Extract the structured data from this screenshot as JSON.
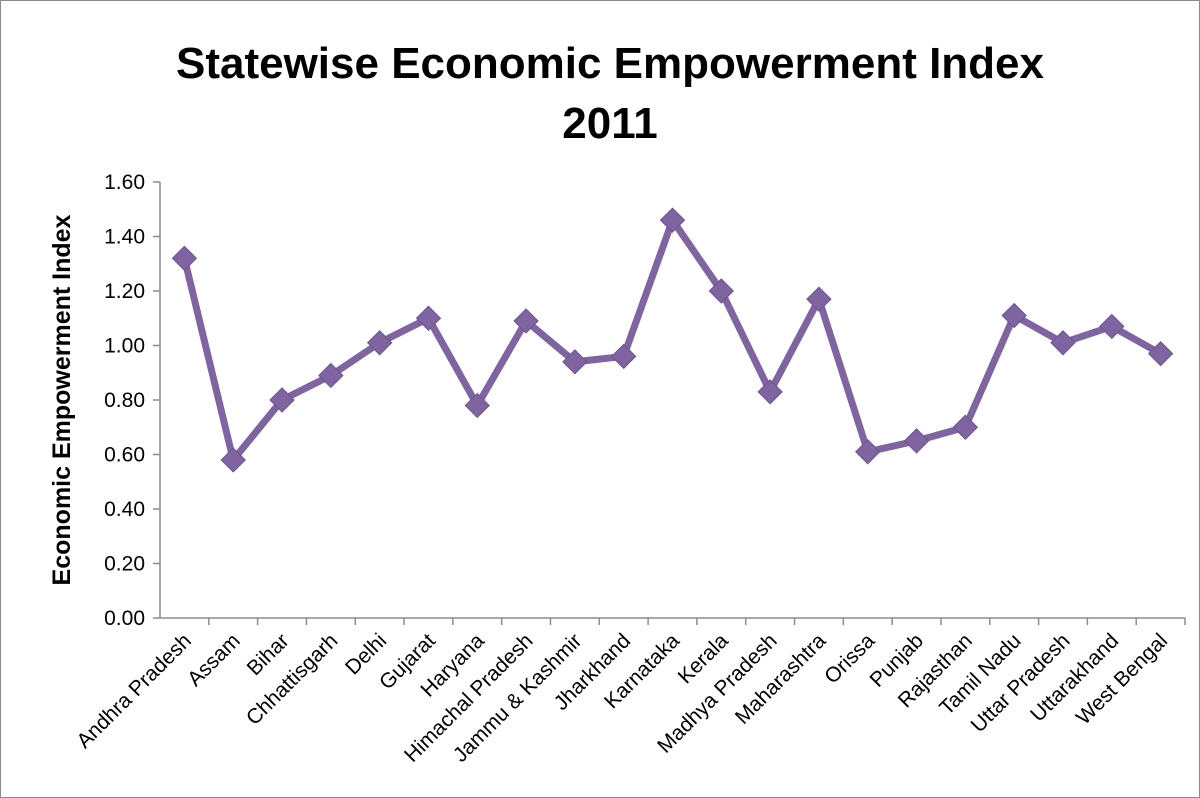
{
  "chart_data": {
    "type": "line",
    "title": "Statewise Economic Empowerment Index",
    "subtitle": "2011",
    "xlabel": "",
    "ylabel": "Economic Empowerment Index",
    "ylim": [
      0,
      1.6
    ],
    "ytick_step": 0.2,
    "ytick_labels": [
      "0.00",
      "0.20",
      "0.40",
      "0.60",
      "0.80",
      "1.00",
      "1.20",
      "1.40",
      "1.60"
    ],
    "grid": false,
    "legend": "none",
    "categories": [
      "Andhra Pradesh",
      "Assam",
      "Bihar",
      "Chhattisgarh",
      "Delhi",
      "Gujarat",
      "Haryana",
      "Himachal Pradesh",
      "Jammu & Kashmir",
      "Jharkhand",
      "Karnataka",
      "Kerala",
      "Madhya Pradesh",
      "Maharashtra",
      "Orissa",
      "Punjab",
      "Rajasthan",
      "Tamil Nadu",
      "Uttar Pradesh",
      "Uttarakhand",
      "West Bengal"
    ],
    "series": [
      {
        "color": "#8064a2",
        "marker": "diamond",
        "values": [
          1.32,
          0.58,
          0.8,
          0.89,
          1.01,
          1.1,
          0.78,
          1.09,
          0.94,
          0.96,
          1.46,
          1.2,
          0.83,
          1.17,
          0.61,
          0.65,
          0.7,
          1.11,
          1.01,
          1.07,
          0.97
        ]
      }
    ]
  }
}
